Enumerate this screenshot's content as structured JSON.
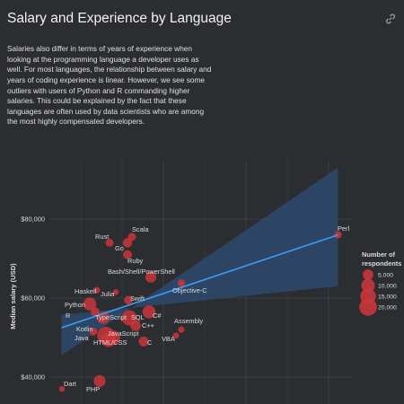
{
  "header": {
    "title": "Salary and Experience by Language",
    "link_icon": "link-icon"
  },
  "description": "Salaries also differ in terms of years of experience when looking at the programming language a developer uses as well. For most languages, the relationship between salary and years of coding experience is linear. However, we see some outliers with users of Python and R commanding higher salaries. This could be explained by the fact that these languages are often used by data scientists who are among the most highly compensated developers.",
  "chart_data": {
    "type": "scatter",
    "ylabel": "Median salary (USD)",
    "xlabel": "",
    "ylim": [
      36000,
      95000
    ],
    "yticks": [
      40000,
      60000,
      80000
    ],
    "ytick_labels": [
      "$40,000",
      "$60,000",
      "$80,000"
    ],
    "grid": true,
    "colors": {
      "point": "#c9363b",
      "trend": "#3d9bf0",
      "band": "#2d4a6e",
      "grid": "#3a3d42",
      "text": "#dcdcdc"
    },
    "trend_line": {
      "start": [
        68.5,
        52500
      ],
      "end": [
        376.5,
        76000
      ]
    },
    "confidence_band": [
      [
        68.5,
        45500
      ],
      [
        376.5,
        93000
      ],
      [
        376.5,
        63000
      ],
      [
        68.5,
        55700
      ]
    ],
    "points": [
      {
        "label": "Perl",
        "x": 376.5,
        "y": 76000,
        "n": 1500
      },
      {
        "label": "Scala",
        "x": 147,
        "y": 75500,
        "n": 2000
      },
      {
        "label": "Rust",
        "x": 122,
        "y": 74000,
        "n": 2000
      },
      {
        "label": "Go",
        "x": 142,
        "y": 74000,
        "n": 3500
      },
      {
        "label": "Ruby",
        "x": 142,
        "y": 71000,
        "n": 3000
      },
      {
        "label": "Bash/Shell/PowerShell",
        "x": 168,
        "y": 65300,
        "n": 5500
      },
      {
        "label": "Objective-C",
        "x": 202,
        "y": 63800,
        "n": 1500
      },
      {
        "label": "Haskell",
        "x": 108,
        "y": 62000,
        "n": 800
      },
      {
        "label": "Julia",
        "x": 129,
        "y": 61500,
        "n": 500
      },
      {
        "label": "Swift",
        "x": 143,
        "y": 59500,
        "n": 2500
      },
      {
        "label": "Python",
        "x": 100,
        "y": 58500,
        "n": 9000
      },
      {
        "label": "R",
        "x": 106,
        "y": 56500,
        "n": 3000
      },
      {
        "label": "C#",
        "x": 166,
        "y": 56500,
        "n": 9000
      },
      {
        "label": "TypeScript",
        "x": 115,
        "y": 55000,
        "n": 8000
      },
      {
        "label": "SQL",
        "x": 144,
        "y": 55000,
        "n": 14000
      },
      {
        "label": "C++",
        "x": 151,
        "y": 53000,
        "n": 5000
      },
      {
        "label": "Assembly",
        "x": 202,
        "y": 52000,
        "n": 800
      },
      {
        "label": "Kotlin",
        "x": 104,
        "y": 51500,
        "n": 2000
      },
      {
        "label": "JavaScript",
        "x": 118,
        "y": 50500,
        "n": 20000
      },
      {
        "label": "Java",
        "x": 126,
        "y": 50000,
        "n": 11000
      },
      {
        "label": "HTML/CSS",
        "x": 121,
        "y": 49500,
        "n": 13000
      },
      {
        "label": "VBA",
        "x": 196,
        "y": 50500,
        "n": 800
      },
      {
        "label": "C",
        "x": 160,
        "y": 49000,
        "n": 4000
      },
      {
        "label": "Dart",
        "x": 69,
        "y": 37000,
        "n": 500
      },
      {
        "label": "PHP",
        "x": 111,
        "y": 39000,
        "n": 7000
      }
    ],
    "legend": {
      "title_lines": [
        "Number of",
        "respondents"
      ],
      "placement": "right",
      "sizes": [
        5000,
        10000,
        15000,
        20000
      ],
      "labels": [
        "5,000",
        "10,000",
        "15,000",
        "20,000"
      ]
    }
  }
}
